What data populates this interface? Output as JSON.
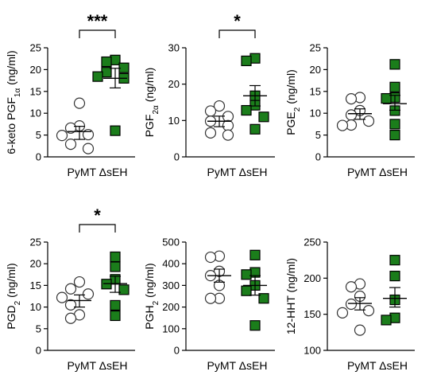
{
  "colors": {
    "group2_fill": "#1b7d1b",
    "group1_fill": "#ffffff",
    "stroke": "#000000"
  },
  "chart_data": [
    {
      "type": "scatter",
      "title": "",
      "ylabel": {
        "parts": [
          {
            "t": "6-keto PGF"
          },
          {
            "t": "1α",
            "sub": true
          },
          {
            "t": " (ng/ml)"
          }
        ]
      },
      "categories": [
        "PyMT",
        "ΔsEH"
      ],
      "ylim": [
        0,
        25
      ],
      "yticks": [
        "0",
        "5",
        "10",
        "15",
        "20",
        "25"
      ],
      "significance": "***",
      "series": [
        {
          "name": "PyMT",
          "values": [
            12.3,
            7.1,
            6.6,
            5.1,
            4.9,
            2.9,
            1.9
          ],
          "mean": 5.8,
          "sem_low": 4.0,
          "sem_high": 7.0
        },
        {
          "name": "ΔsEH",
          "values": [
            22.2,
            21.8,
            20.4,
            19.4,
            18.4,
            18.0,
            6.0
          ],
          "mean": 18.0,
          "sem_low": 15.8,
          "sem_high": 20.3
        }
      ]
    },
    {
      "type": "scatter",
      "title": "",
      "ylabel": {
        "parts": [
          {
            "t": "PGF"
          },
          {
            "t": "2α",
            "sub": true
          },
          {
            "t": " (ng/ml)"
          }
        ]
      },
      "categories": [
        "PyMT",
        "ΔsEH"
      ],
      "ylim": [
        0,
        30
      ],
      "yticks": [
        "0",
        "10",
        "20",
        "30"
      ],
      "significance": "*",
      "series": [
        {
          "name": "PyMT",
          "values": [
            14.0,
            12.6,
            11.1,
            9.8,
            8.6,
            6.6,
            6.0
          ],
          "mean": 9.8,
          "sem_low": 8.3,
          "sem_high": 11.2
        },
        {
          "name": "ΔsEH",
          "values": [
            27.1,
            26.4,
            16.8,
            14.2,
            12.8,
            11.0,
            7.6
          ],
          "mean": 16.8,
          "sem_low": 14.0,
          "sem_high": 19.6
        }
      ]
    },
    {
      "type": "scatter",
      "title": "",
      "ylabel": {
        "parts": [
          {
            "t": "PGE"
          },
          {
            "t": "2",
            "sub": true
          },
          {
            "t": " (ng/ml)"
          }
        ]
      },
      "categories": [
        "PyMT",
        "ΔsEH"
      ],
      "ylim": [
        0,
        25
      ],
      "yticks": [
        "0",
        "5",
        "10",
        "15",
        "20",
        "25"
      ],
      "significance": "",
      "series": [
        {
          "name": "PyMT",
          "values": [
            13.6,
            13.3,
            10.6,
            9.6,
            8.2,
            7.3,
            7.2
          ],
          "mean": 9.9,
          "sem_low": 8.6,
          "sem_high": 11.0
        },
        {
          "name": "ΔsEH",
          "values": [
            21.2,
            16.0,
            13.6,
            13.4,
            10.6,
            7.5,
            5.0
          ],
          "mean": 12.2,
          "sem_low": 10.7,
          "sem_high": 14.1
        }
      ]
    },
    {
      "type": "scatter",
      "title": "",
      "ylabel": {
        "parts": [
          {
            "t": "PGD"
          },
          {
            "t": "2",
            "sub": true
          },
          {
            "t": " (ng/ml)"
          }
        ]
      },
      "categories": [
        "PyMT",
        "ΔsEH"
      ],
      "ylim": [
        0,
        25
      ],
      "yticks": [
        "0",
        "5",
        "10",
        "15",
        "20",
        "25"
      ],
      "significance": "*",
      "series": [
        {
          "name": "PyMT",
          "values": [
            15.8,
            14.2,
            13.0,
            12.2,
            10.5,
            8.2,
            7.4
          ],
          "mean": 11.5,
          "sem_low": 10.0,
          "sem_high": 12.8
        },
        {
          "name": "ΔsEH",
          "values": [
            21.6,
            19.3,
            16.4,
            15.3,
            14.0,
            10.4,
            8.0
          ],
          "mean": 15.4,
          "sem_low": 13.4,
          "sem_high": 17.1
        }
      ]
    },
    {
      "type": "scatter",
      "title": "",
      "ylabel": {
        "parts": [
          {
            "t": "PGH"
          },
          {
            "t": "2",
            "sub": true
          },
          {
            "t": " (ng/ml)"
          }
        ]
      },
      "categories": [
        "PyMT",
        "ΔsEH"
      ],
      "ylim": [
        0,
        500
      ],
      "yticks": [
        "0",
        "100",
        "200",
        "300",
        "400",
        "500"
      ],
      "significance": "",
      "series": [
        {
          "name": "PyMT",
          "values": [
            435,
            430,
            365,
            345,
            300,
            240,
            240
          ],
          "mean": 345,
          "sem_low": 315,
          "sem_high": 375
        },
        {
          "name": "ΔsEH",
          "values": [
            440,
            360,
            350,
            300,
            275,
            240,
            115
          ],
          "mean": 300,
          "sem_low": 255,
          "sem_high": 345
        }
      ]
    },
    {
      "type": "scatter",
      "title": "",
      "ylabel": {
        "parts": [
          {
            "t": "12-HHT (ng/ml)"
          }
        ]
      },
      "categories": [
        "PyMT",
        "ΔsEH"
      ],
      "ylim": [
        100,
        250
      ],
      "yticks": [
        "100",
        "150",
        "200",
        "250"
      ],
      "significance": "",
      "series": [
        {
          "name": "PyMT",
          "values": [
            192,
            188,
            175,
            164,
            155,
            152,
            128
          ],
          "mean": 165,
          "sem_low": 156,
          "sem_high": 173
        },
        {
          "name": "ΔsEH",
          "values": [
            225,
            203,
            170,
            145,
            142
          ],
          "mean": 172,
          "sem_low": 160,
          "sem_high": 187
        }
      ]
    }
  ]
}
